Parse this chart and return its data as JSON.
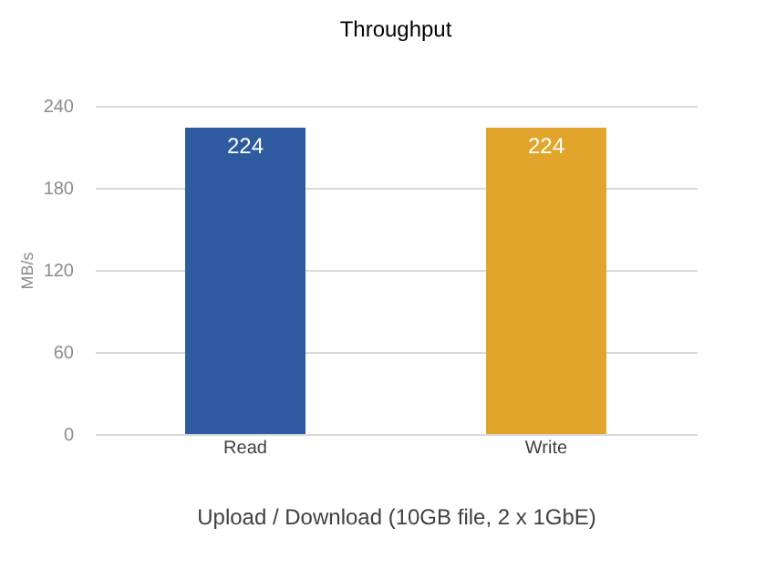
{
  "chart_data": {
    "type": "bar",
    "title": "Throughput",
    "xlabel": "Upload / Download (10GB file, 2 x 1GbE)",
    "ylabel": "MB/s",
    "categories": [
      "Read",
      "Write"
    ],
    "values": [
      224,
      224
    ],
    "colors": [
      "#2e5aa0",
      "#e2a52b"
    ],
    "ylim": [
      0,
      240
    ],
    "yticks": [
      0,
      60,
      120,
      180,
      240
    ],
    "grid": "y",
    "data_labels": true
  }
}
